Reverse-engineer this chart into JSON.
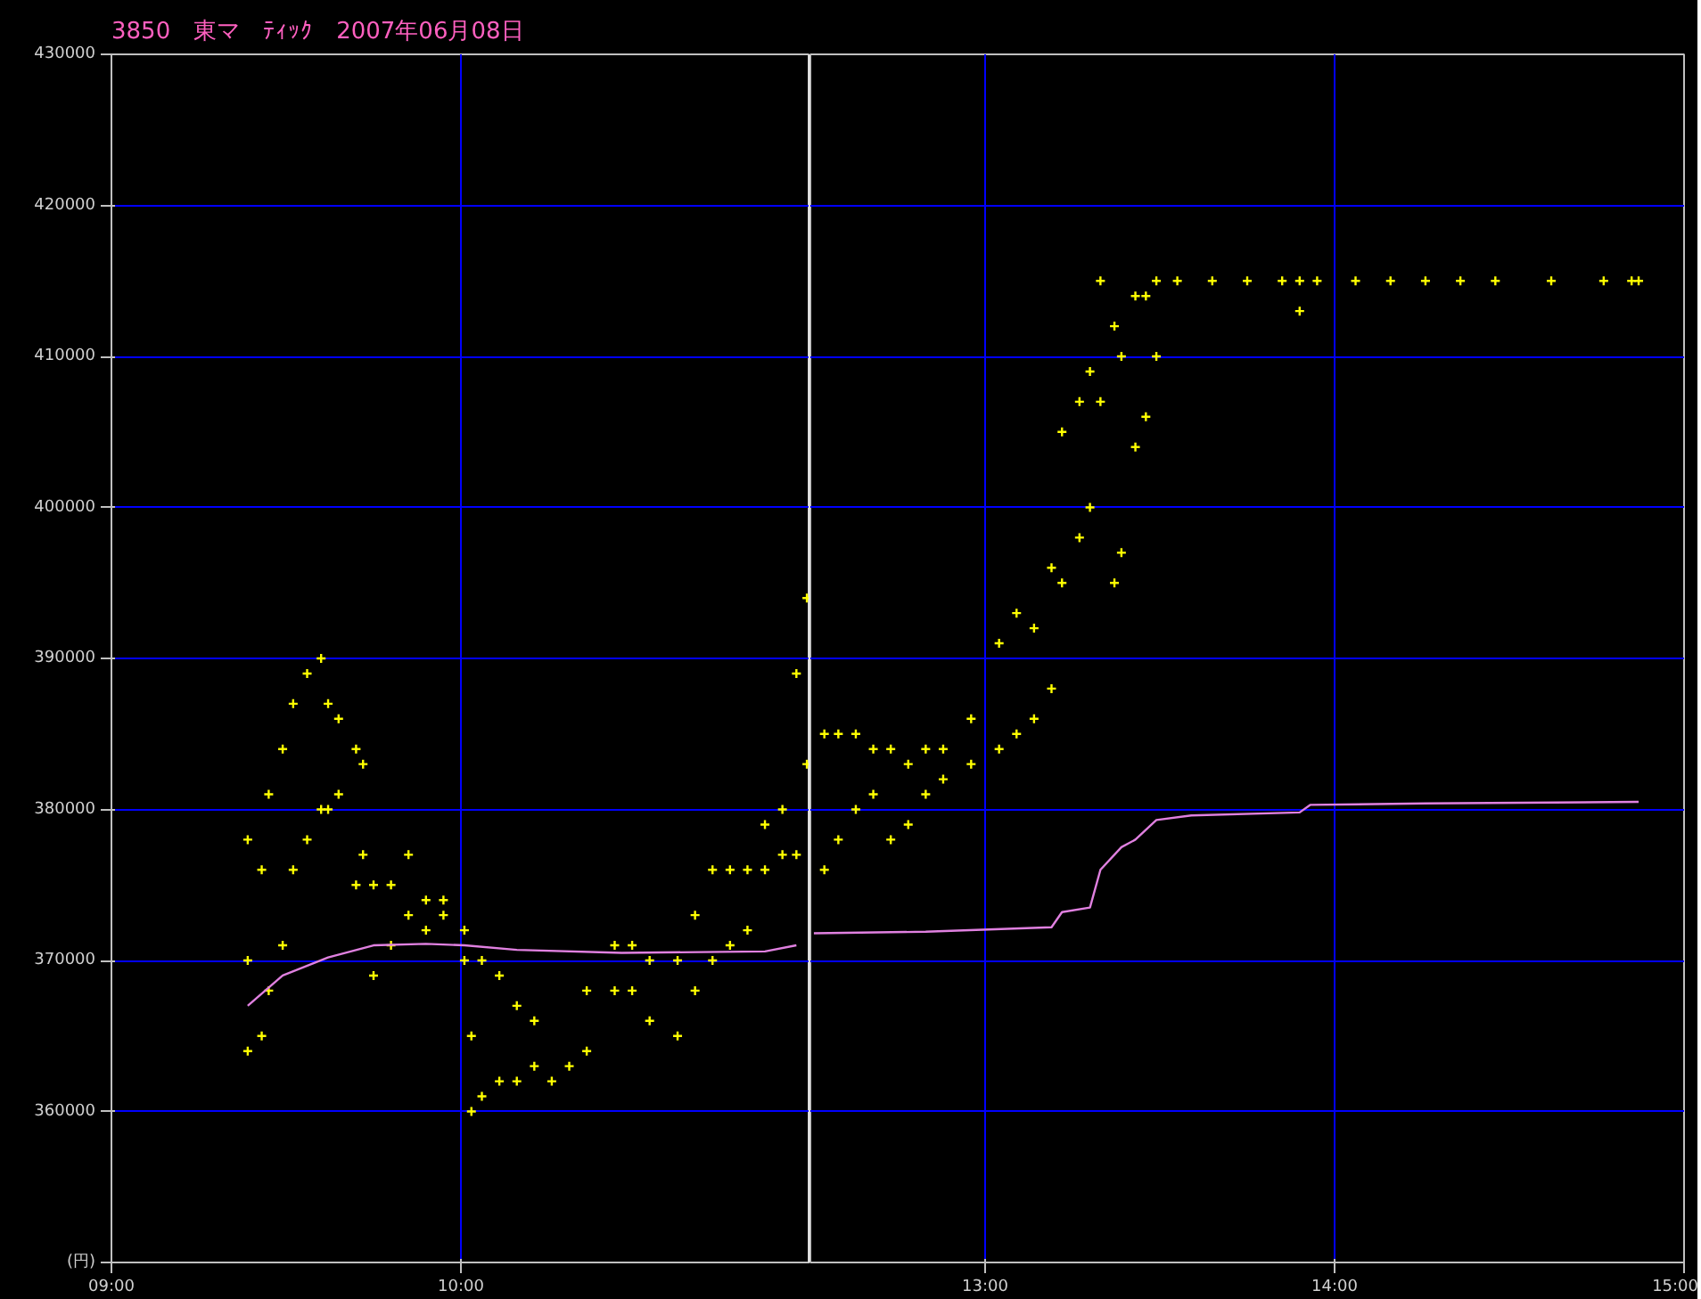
{
  "chart_data": [
    {
      "type": "scatter",
      "title": "3850　東マ　ﾃｨｯｸ　2007年06月08日",
      "xlim": [
        9,
        11
      ],
      "ylim": [
        350000,
        430000
      ],
      "xticks": [
        {
          "value": 9,
          "label": "09:00"
        },
        {
          "value": 10,
          "label": "10:00"
        },
        {
          "value": 11,
          "label": null
        }
      ],
      "yticks": [
        {
          "value": 350000,
          "label": "(円)"
        },
        360000,
        370000,
        380000,
        390000,
        400000,
        410000,
        420000,
        430000
      ],
      "grid": true,
      "marker": "cross",
      "ref_lines": [
        {
          "axis": "x",
          "value": 11,
          "label": null,
          "color": "#ffffff"
        }
      ],
      "series": [
        {
          "color": "#ffff00",
          "x": [
            9.39,
            9.39,
            9.39,
            9.43,
            9.43,
            9.45,
            9.45,
            9.49,
            9.49,
            9.52,
            9.52,
            9.56,
            9.56,
            9.6,
            9.6,
            9.62,
            9.62,
            9.65,
            9.65,
            9.7,
            9.7,
            9.72,
            9.72,
            9.75,
            9.75,
            9.8,
            9.8,
            9.85,
            9.85,
            9.9,
            9.9,
            9.95,
            9.95,
            10.01,
            10.01,
            10.03,
            10.03,
            10.06,
            10.06,
            10.11,
            10.11,
            10.16,
            10.16,
            10.21,
            10.21,
            10.26,
            10.31,
            10.36,
            10.36,
            10.44,
            10.44,
            10.49,
            10.49,
            10.54,
            10.54,
            10.62,
            10.62,
            10.67,
            10.67,
            10.72,
            10.72,
            10.77,
            10.77,
            10.82,
            10.82,
            10.87,
            10.87,
            10.92,
            10.92,
            10.96,
            10.96,
            10.99,
            10.99
          ],
          "values": [
            364000,
            370000,
            378000,
            365000,
            376000,
            368000,
            381000,
            371000,
            384000,
            376000,
            387000,
            378000,
            389000,
            380000,
            390000,
            380000,
            387000,
            381000,
            386000,
            375000,
            384000,
            377000,
            383000,
            369000,
            375000,
            371000,
            375000,
            373000,
            377000,
            372000,
            374000,
            373000,
            374000,
            370000,
            372000,
            360000,
            365000,
            361000,
            370000,
            362000,
            369000,
            362000,
            367000,
            363000,
            366000,
            362000,
            363000,
            364000,
            368000,
            368000,
            371000,
            368000,
            371000,
            366000,
            370000,
            365000,
            370000,
            368000,
            373000,
            370000,
            376000,
            371000,
            376000,
            372000,
            376000,
            376000,
            379000,
            377000,
            380000,
            377000,
            389000,
            383000,
            394000
          ]
        },
        {
          "type": "line",
          "color": "#e080e0",
          "marker": "none",
          "x": [
            9.39,
            9.49,
            9.62,
            9.75,
            9.9,
            10.01,
            10.16,
            10.46,
            10.87,
            10.96
          ],
          "values": [
            367000,
            369000,
            370200,
            371000,
            371100,
            371000,
            370700,
            370500,
            370600,
            371000
          ]
        }
      ]
    },
    {
      "type": "scatter",
      "tick_labels": "x",
      "xlim": [
        12.5,
        15
      ],
      "ylim": [
        350000,
        430000
      ],
      "xticks": [
        {
          "value": 13,
          "label": "13:00"
        },
        {
          "value": 14,
          "label": "14:00"
        },
        {
          "value": 15,
          "label": "15:00"
        }
      ],
      "yticks": [
        350000,
        360000,
        370000,
        380000,
        390000,
        400000,
        410000,
        420000,
        430000
      ],
      "grid": true,
      "marker": "cross",
      "series": [
        {
          "color": "#ffff00",
          "x": [
            12.54,
            12.54,
            12.58,
            12.58,
            12.63,
            12.63,
            12.68,
            12.68,
            12.73,
            12.73,
            12.78,
            12.78,
            12.83,
            12.83,
            12.88,
            12.88,
            12.96,
            12.96,
            13.04,
            13.04,
            13.09,
            13.09,
            13.14,
            13.14,
            13.19,
            13.19,
            13.22,
            13.22,
            13.27,
            13.27,
            13.3,
            13.3,
            13.33,
            13.33,
            13.37,
            13.37,
            13.39,
            13.39,
            13.43,
            13.43,
            13.46,
            13.46,
            13.49,
            13.49,
            13.55,
            13.65,
            13.75,
            13.85,
            13.9,
            13.9,
            13.95,
            14.06,
            14.16,
            14.26,
            14.36,
            14.46,
            14.62,
            14.77,
            14.85,
            14.87
          ],
          "values": [
            376000,
            385000,
            378000,
            385000,
            380000,
            385000,
            381000,
            384000,
            378000,
            384000,
            379000,
            383000,
            381000,
            384000,
            382000,
            384000,
            383000,
            386000,
            384000,
            391000,
            385000,
            393000,
            386000,
            392000,
            388000,
            396000,
            395000,
            405000,
            398000,
            407000,
            400000,
            409000,
            407000,
            415000,
            395000,
            412000,
            397000,
            410000,
            404000,
            414000,
            406000,
            414000,
            410000,
            415000,
            415000,
            415000,
            415000,
            415000,
            415000,
            413000,
            415000,
            415000,
            415000,
            415000,
            415000,
            415000,
            415000,
            415000,
            415000,
            415000
          ]
        },
        {
          "type": "line",
          "color": "#e080e0",
          "marker": "none",
          "x": [
            12.51,
            12.83,
            13.19,
            13.22,
            13.3,
            13.33,
            13.39,
            13.43,
            13.49,
            13.59,
            13.9,
            13.93,
            14.26,
            14.87
          ],
          "values": [
            371800,
            371900,
            372200,
            373200,
            373500,
            376000,
            377500,
            378000,
            379300,
            379600,
            379800,
            380300,
            380400,
            380500
          ]
        }
      ]
    }
  ]
}
